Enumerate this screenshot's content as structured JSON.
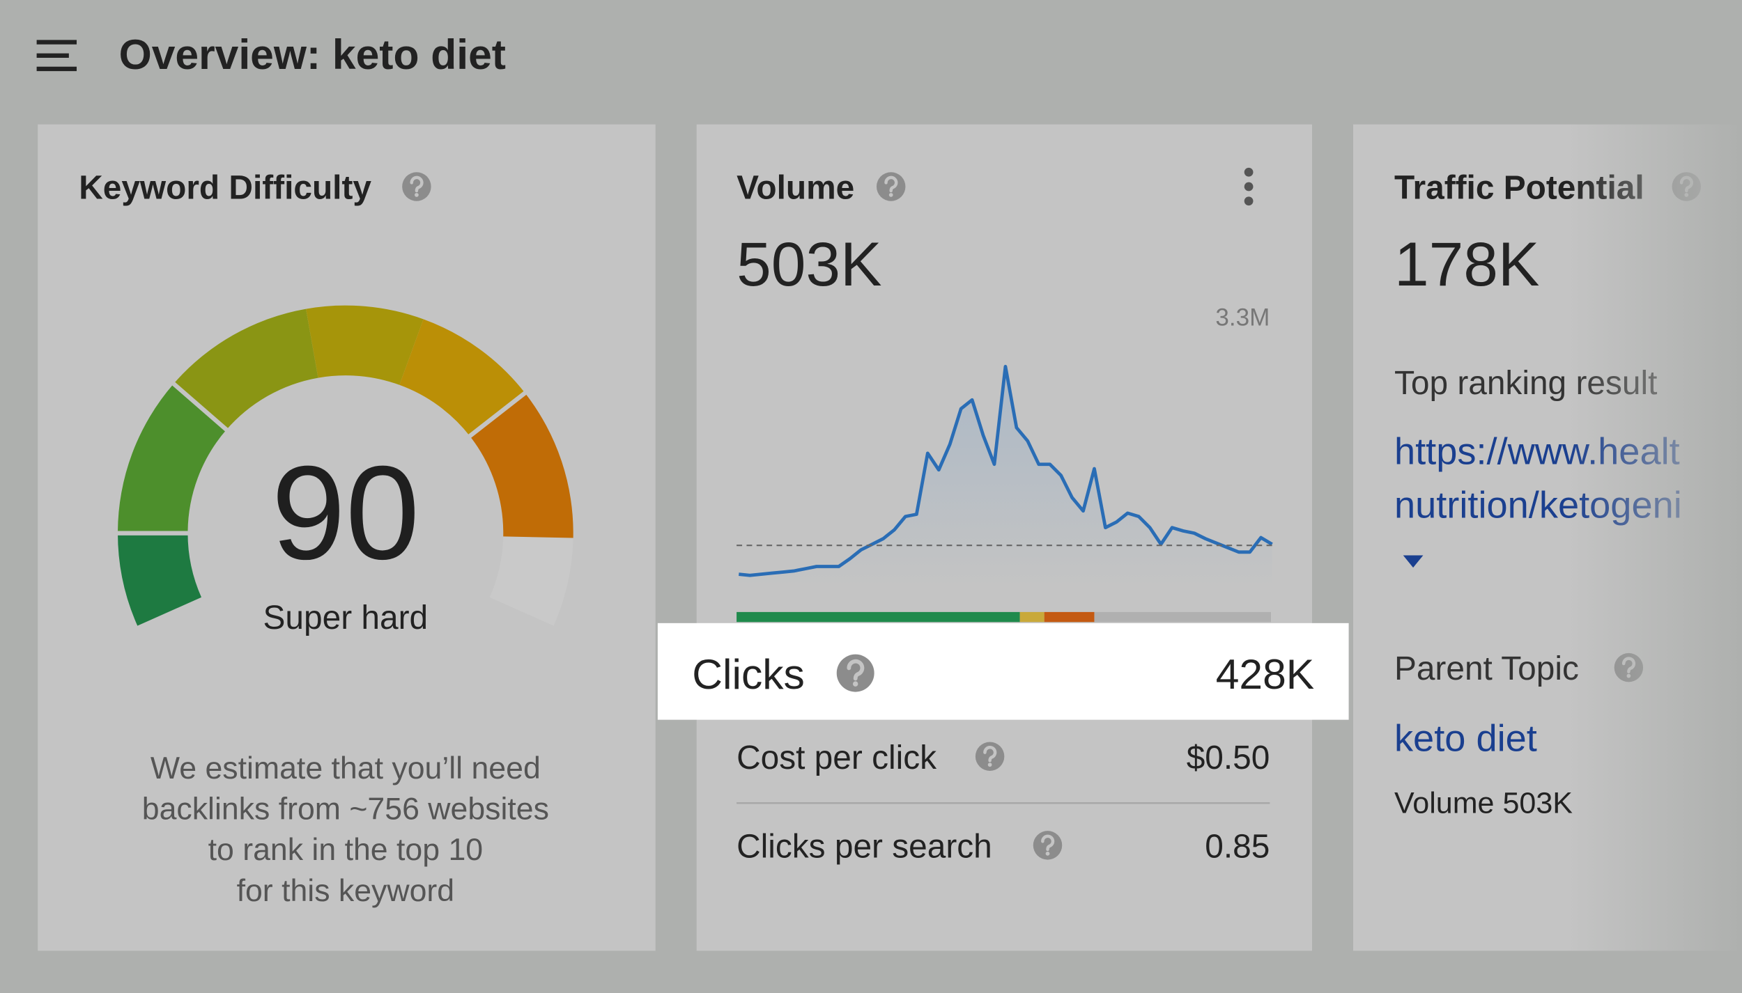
{
  "header": {
    "title": "Overview: keto diet"
  },
  "keyword_difficulty": {
    "title": "Keyword Difficulty",
    "score": 90,
    "range": [
      0,
      100
    ],
    "rating": "Super hard",
    "description": [
      "We estimate that you’ll need",
      "backlinks from ~756 websites",
      "to rank in the top 10",
      "for this keyword"
    ]
  },
  "volume": {
    "title": "Volume",
    "value": "503K",
    "chart": {
      "type": "line",
      "color": "#2a6db5",
      "ylim": [
        0,
        3300000
      ],
      "yticks": [
        {
          "value": 3300000,
          "label": "3.3M"
        }
      ],
      "values": [
        187000,
        172000,
        187000,
        201000,
        215000,
        230000,
        258000,
        287000,
        287000,
        287000,
        387000,
        502000,
        574000,
        646000,
        760000,
        933000,
        961000,
        1750000,
        1535000,
        1865000,
        2324000,
        2439000,
        1980000,
        1607000,
        2870000,
        2080000,
        1908000,
        1607000,
        1607000,
        1463000,
        1177000,
        1004000,
        1550000,
        789000,
        861000,
        976000,
        933000,
        789000,
        574000,
        789000,
        746000,
        717000,
        646000,
        588000,
        531000,
        473000,
        473000,
        660000,
        574000
      ]
    },
    "metrics": [
      {
        "label": "Clicks",
        "value": "428K"
      },
      {
        "label": "Cost per click",
        "value": "$0.50"
      },
      {
        "label": "Clicks per search",
        "value": 0.85
      }
    ]
  },
  "traffic_potential": {
    "title": "Traffic Potential",
    "value": "178K",
    "top_ranking_label": "Top ranking result",
    "top_ranking_url": [
      "https://www.healt",
      "nutrition/ketogeni"
    ],
    "parent_topic_label": "Parent Topic",
    "parent_topic": "keto diet",
    "parent_volume": "Volume 503K"
  }
}
